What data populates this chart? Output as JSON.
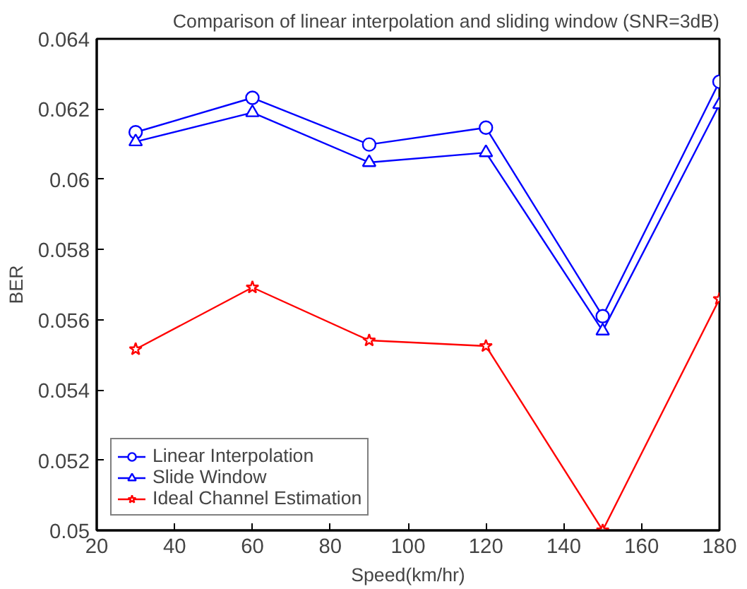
{
  "chart_data": {
    "type": "line",
    "title": "Comparison of linear interpolation and sliding window (SNR=3dB)",
    "xlabel": "Speed(km/hr)",
    "ylabel": "BER",
    "x": [
      30,
      60,
      90,
      120,
      150,
      180
    ],
    "series": [
      {
        "name": "Linear Interpolation",
        "color": "#0000ff",
        "marker": "circle",
        "values": [
          0.06134,
          0.06232,
          0.06099,
          0.06147,
          0.0561,
          0.06278
        ]
      },
      {
        "name": "Slide Window",
        "color": "#0000ff",
        "marker": "triangle",
        "values": [
          0.06107,
          0.0619,
          0.06048,
          0.06076,
          0.05568,
          0.06213
        ]
      },
      {
        "name": "Ideal Channel Estimation",
        "color": "#ff0000",
        "marker": "star",
        "values": [
          0.05516,
          0.05692,
          0.05541,
          0.05525,
          0.05,
          0.05659
        ]
      }
    ],
    "xlim": [
      20,
      180
    ],
    "ylim": [
      0.05,
      0.064
    ],
    "xticks": [
      20,
      40,
      60,
      80,
      100,
      120,
      140,
      160,
      180
    ],
    "yticks": [
      0.05,
      0.052,
      0.054,
      0.056,
      0.058,
      0.06,
      0.062,
      0.064
    ],
    "grid": false,
    "legend": "bottom left",
    "line_style": "solid"
  }
}
